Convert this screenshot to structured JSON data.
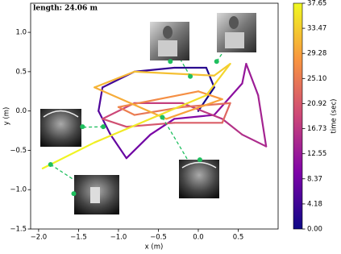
{
  "chart_data": {
    "type": "trajectory",
    "annotation": "length: 24.06 m",
    "xlabel": "x (m)",
    "ylabel": "y (m)",
    "colorbar_label": "time (sec)",
    "colormap": "plasma",
    "xlim": [
      -2.1,
      1.0
    ],
    "ylim": [
      -1.5,
      1.37
    ],
    "clim": [
      0,
      37.65
    ],
    "xticks": [
      {
        "value": -2.0,
        "label": "−2.0"
      },
      {
        "value": -1.5,
        "label": "−1.5"
      },
      {
        "value": -1.0,
        "label": "−1.0"
      },
      {
        "value": -0.5,
        "label": "−0.5"
      },
      {
        "value": 0.0,
        "label": "0.0"
      },
      0.5
    ],
    "yticks": [
      {
        "value": -1.5,
        "label": "−1.5"
      },
      {
        "value": -1.0,
        "label": "−1.0"
      },
      {
        "value": -0.5,
        "label": "−0.5"
      },
      {
        "value": 0.0,
        "label": "0.0"
      },
      0.5,
      {
        "value": 1.0,
        "label": "1.0"
      }
    ],
    "cticks": [
      {
        "value": 0,
        "label": "0.00"
      },
      4.18,
      8.37,
      12.55,
      16.73,
      20.92,
      {
        "value": 25.1,
        "label": "25.10"
      },
      29.28,
      33.47,
      37.65
    ],
    "trajectory": {
      "x": [
        0.0,
        0.2,
        0.1,
        -0.3,
        -0.8,
        -1.2,
        -1.25,
        -1.1,
        -0.9,
        -0.6,
        -0.3,
        0.2,
        0.55,
        0.6,
        0.75,
        0.85,
        0.55,
        0.3,
        -0.2,
        -0.8,
        -1.2,
        -0.9,
        -0.3,
        0.3,
        0.4,
        -0.2,
        -0.8,
        -1.0,
        -0.5,
        0.0,
        0.3,
        -0.4,
        -1.3,
        -0.8,
        0.2,
        0.4,
        0.1,
        -0.6,
        -1.3,
        -1.95
      ],
      "y": [
        0.0,
        0.3,
        0.55,
        0.55,
        0.5,
        0.3,
        0.0,
        -0.3,
        -0.6,
        -0.3,
        -0.1,
        -0.05,
        0.35,
        0.6,
        0.2,
        -0.45,
        -0.3,
        -0.1,
        0.1,
        0.1,
        -0.1,
        -0.2,
        -0.15,
        -0.15,
        0.1,
        0.05,
        -0.05,
        0.05,
        0.15,
        0.25,
        0.15,
        -0.1,
        0.3,
        0.5,
        0.45,
        0.6,
        0.2,
        -0.1,
        -0.4,
        -0.73
      ],
      "t": [
        0,
        0.97,
        1.93,
        2.9,
        3.86,
        4.83,
        5.79,
        6.76,
        7.72,
        8.69,
        9.65,
        10.62,
        11.58,
        12.55,
        13.51,
        14.48,
        15.44,
        16.41,
        17.37,
        18.34,
        19.3,
        20.27,
        21.23,
        22.2,
        23.16,
        24.13,
        25.09,
        26.06,
        27.02,
        27.99,
        28.95,
        29.92,
        30.88,
        31.85,
        32.81,
        33.78,
        34.74,
        35.71,
        36.67,
        37.65
      ]
    },
    "keyframes": {
      "color": "#1fbf5f",
      "x": [
        -1.45,
        -1.19,
        -1.85,
        -1.56,
        -0.35,
        -0.1,
        0.23,
        -0.45,
        0.02
      ],
      "y": [
        -0.2,
        -0.2,
        -0.68,
        -1.05,
        0.63,
        0.44,
        0.63,
        -0.08,
        -0.62
      ]
    }
  }
}
